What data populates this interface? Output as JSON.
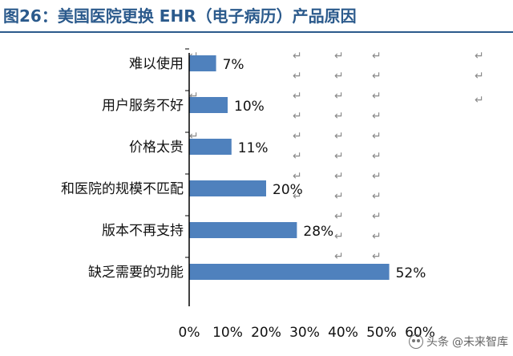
{
  "title": "图26：美国医院更换 EHR（电子病历）产品原因",
  "watermark": {
    "source": "头条",
    "name": "@未来智库",
    "icon": "wechat-icon"
  },
  "paragraph_mark": "↵",
  "colors": {
    "bar": "#4f81bd",
    "title": "#2b5a8c",
    "axis": "#000000"
  },
  "chart_data": {
    "type": "bar",
    "orientation": "horizontal",
    "title": "",
    "xlabel": "",
    "ylabel": "",
    "categories": [
      "难以使用",
      "用户服务不好",
      "价格太贵",
      "和医院的规模不匹配",
      "版本不再支持",
      "缺乏需要的功能"
    ],
    "values": [
      7,
      10,
      11,
      20,
      28,
      52
    ],
    "data_labels": [
      "7%",
      "10%",
      "11%",
      "20%",
      "28%",
      "52%"
    ],
    "x_ticks": [
      0,
      10,
      20,
      30,
      40,
      50,
      60
    ],
    "x_tick_labels": [
      "0%",
      "10%",
      "20%",
      "30%",
      "40%",
      "50%",
      "60%"
    ],
    "xlim": [
      0,
      60
    ],
    "grid": false,
    "legend": "none"
  }
}
